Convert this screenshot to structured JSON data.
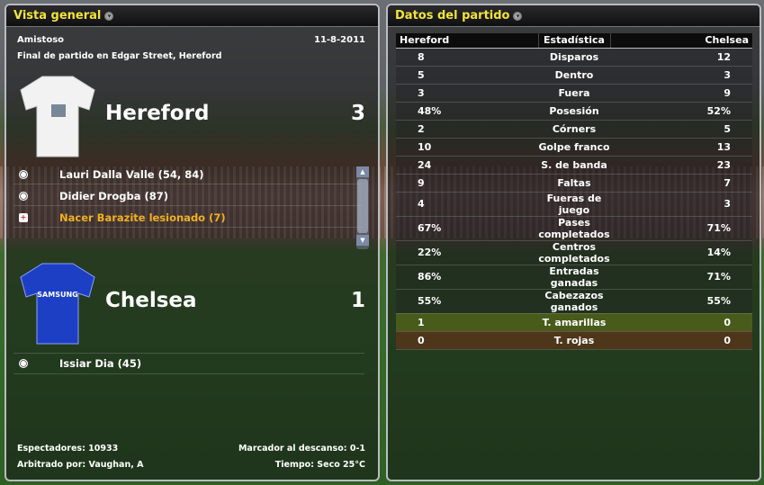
{
  "overview": {
    "title": "Vista general",
    "competition": "Amistoso",
    "date": "11-8-2011",
    "subtitle": "Final de partido en Edgar Street, Hereford",
    "home": {
      "name": "Hereford",
      "score": "3",
      "kit_color": "#f2f2f2",
      "events": [
        {
          "icon": "goal-ball-icon",
          "text": "Lauri Dalla Valle (54, 84)"
        },
        {
          "icon": "goal-ball-icon",
          "text": "Didier Drogba (87)"
        },
        {
          "icon": "injury-icon",
          "text": "Nacer Barazite lesionado (7)",
          "color": "#f0b020"
        }
      ]
    },
    "away": {
      "name": "Chelsea",
      "score": "1",
      "kit_color": "#1d3fc4",
      "events": [
        {
          "icon": "goal-ball-icon",
          "text": "Issiar Dia (45)"
        }
      ]
    },
    "attendance": "Espectadores: 10933",
    "referee": "Arbitrado por: Vaughan, A",
    "halftime": "Marcador al descanso: 0-1",
    "weather": "Tiempo: Seco 25°C"
  },
  "stats": {
    "title": "Datos del partido",
    "headers": [
      "Hereford",
      "Estadística",
      "Chelsea"
    ],
    "rows": [
      [
        "8",
        "Disparos",
        "12"
      ],
      [
        "5",
        "Dentro",
        "3"
      ],
      [
        "3",
        "Fuera",
        "9"
      ],
      [
        "48%",
        "Posesión",
        "52%"
      ],
      [
        "2",
        "Córners",
        "5"
      ],
      [
        "10",
        "Golpe franco",
        "13"
      ],
      [
        "24",
        "S. de banda",
        "23"
      ],
      [
        "9",
        "Faltas",
        "7"
      ],
      [
        "4",
        "Fueras de juego",
        "3"
      ],
      [
        "67%",
        "Pases completados",
        "71%"
      ],
      [
        "22%",
        "Centros completados",
        "14%"
      ],
      [
        "86%",
        "Entradas ganadas",
        "71%"
      ],
      [
        "55%",
        "Cabezazos ganados",
        "55%"
      ],
      [
        "1",
        "T. amarillas",
        "0"
      ],
      [
        "0",
        "T. rojas",
        "0"
      ]
    ]
  }
}
